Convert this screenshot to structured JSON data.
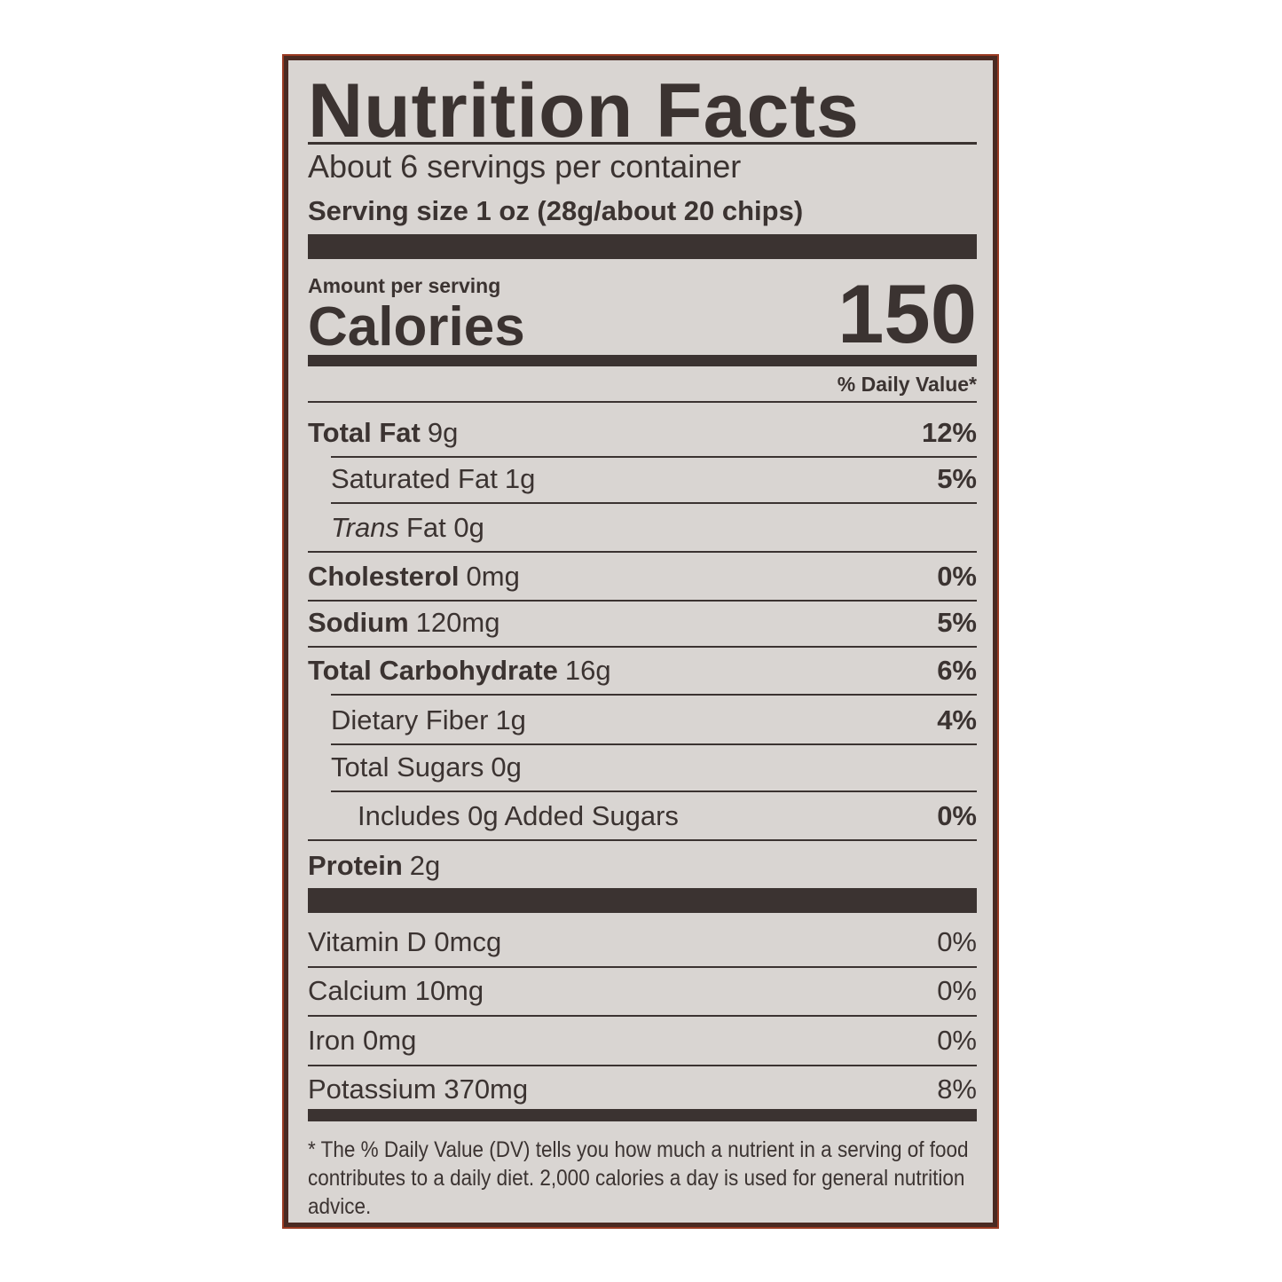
{
  "title": "Nutrition Facts",
  "servings_per_container": "About 6 servings per container",
  "serving_size": "Serving size 1 oz (28g/about 20 chips)",
  "amount_per_serving": "Amount per serving",
  "calories_label": "Calories",
  "calories_value": "150",
  "daily_value_header": "% Daily Value*",
  "nutrients": [
    {
      "name": "Total Fat",
      "amount": "9g",
      "dv": "12%"
    },
    {
      "name": "Saturated Fat",
      "amount": "1g",
      "dv": "5%"
    },
    {
      "name": "Trans",
      "amount": "Fat 0g",
      "dv": ""
    },
    {
      "name": "Cholesterol",
      "amount": "0mg",
      "dv": "0%"
    },
    {
      "name": "Sodium",
      "amount": "120mg",
      "dv": "5%"
    },
    {
      "name": "Total Carbohydrate",
      "amount": "16g",
      "dv": "6%"
    },
    {
      "name": "Dietary Fiber",
      "amount": "1g",
      "dv": "4%"
    },
    {
      "name": "Total Sugars",
      "amount": "0g",
      "dv": ""
    },
    {
      "name": "Includes 0g Added Sugars",
      "amount": "",
      "dv": "0%"
    },
    {
      "name": "Protein",
      "amount": "2g",
      "dv": ""
    }
  ],
  "vitamins": [
    {
      "label": "Vitamin D 0mcg",
      "dv": "0%"
    },
    {
      "label": "Calcium 10mg",
      "dv": "0%"
    },
    {
      "label": "Iron 0mg",
      "dv": "0%"
    },
    {
      "label": "Potassium 370mg",
      "dv": "8%"
    }
  ],
  "footnote": "* The % Daily Value (DV) tells you how much a nutrient in a serving of food contributes to a daily diet. 2,000 calories a day is used for general nutrition advice.",
  "colors": {
    "text": "#3b3331",
    "panel": "#d9d5d2",
    "border": "#4a2a22"
  }
}
